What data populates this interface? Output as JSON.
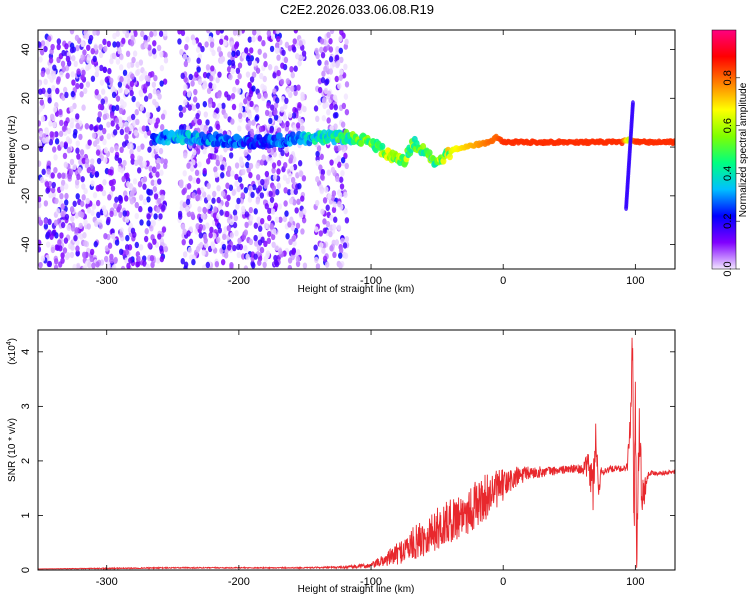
{
  "title": "C2E2.2026.033.06.08.R19",
  "chart_data": [
    {
      "type": "heatmap",
      "xlabel": "Height of straight line (km)",
      "ylabel": "Frequency (Hz)",
      "xlim": [
        -352,
        130
      ],
      "ylim": [
        -50,
        48
      ],
      "x_ticks": [
        -300,
        -200,
        -100,
        0,
        100
      ],
      "x_tick_labels": [
        "-300",
        "-200",
        "-100",
        "0",
        "100"
      ],
      "y_ticks": [
        -40,
        -20,
        0,
        20,
        40
      ],
      "y_tick_labels": [
        "-40",
        "-20",
        "0",
        "20",
        "40"
      ],
      "colorbar": {
        "label": "Normalized spectral amplitude",
        "range": [
          0,
          1
        ],
        "ticks": [
          0.0,
          0.2,
          0.4,
          0.6,
          0.8
        ],
        "tick_labels": [
          "0.0",
          "0.2",
          "0.4",
          "0.6",
          "0.8"
        ],
        "colors": [
          "#f2e6ff",
          "#8000ff",
          "#0000ff",
          "#00c0ff",
          "#00ff80",
          "#80ff00",
          "#ffff00",
          "#ff8000",
          "#ff0000",
          "#ff0080"
        ]
      },
      "noise_regions": [
        [
          -352,
          -255
        ],
        [
          -245,
          -150
        ],
        [
          -142,
          -118
        ]
      ],
      "signal_ridge": {
        "x": [
          -265,
          -240,
          -215,
          -190,
          -160,
          -140,
          -125,
          -110,
          -95,
          -85,
          -75,
          -68,
          -60,
          -52,
          -45,
          -38,
          -30,
          -20,
          -10,
          -5,
          0,
          20,
          60,
          90,
          95,
          100,
          130
        ],
        "frequency": [
          4,
          4,
          3,
          2,
          3,
          4,
          4,
          4,
          0,
          -4,
          -6,
          2,
          -2,
          -6,
          -4,
          -1,
          0,
          1,
          2,
          4,
          2,
          2,
          2,
          2,
          3,
          2,
          2
        ],
        "amplitude": [
          0.3,
          0.35,
          0.3,
          0.25,
          0.3,
          0.4,
          0.45,
          0.5,
          0.55,
          0.6,
          0.6,
          0.55,
          0.5,
          0.5,
          0.6,
          0.65,
          0.7,
          0.75,
          0.8,
          0.8,
          0.85,
          0.85,
          0.85,
          0.85,
          0.6,
          0.85,
          0.85
        ]
      }
    },
    {
      "type": "line",
      "xlabel": "Height of straight line (km)",
      "ylabel": "SNR (10 * v/v)",
      "y_scale_label": "(x10",
      "y_scale_exponent": "4",
      "y_scale_close": ")",
      "xlim": [
        -352,
        130
      ],
      "ylim": [
        0,
        4.4
      ],
      "x_ticks": [
        -300,
        -200,
        -100,
        0,
        100
      ],
      "x_tick_labels": [
        "-300",
        "-200",
        "-100",
        "0",
        "100"
      ],
      "y_ticks": [
        0,
        1,
        2,
        3,
        4
      ],
      "y_tick_labels": [
        "0",
        "1",
        "2",
        "3",
        "4"
      ],
      "series": [
        {
          "color": "#e8282d",
          "x": [
            -352,
            -300,
            -250,
            -200,
            -150,
            -120,
            -100,
            -90,
            -80,
            -70,
            -60,
            -50,
            -40,
            -30,
            -20,
            -10,
            0,
            10,
            20,
            30,
            40,
            50,
            60,
            65,
            68,
            70,
            72,
            75,
            80,
            90,
            94,
            96,
            98,
            99,
            100,
            101,
            103,
            105,
            110,
            120,
            130
          ],
          "y": [
            0.02,
            0.03,
            0.04,
            0.04,
            0.04,
            0.05,
            0.08,
            0.18,
            0.3,
            0.45,
            0.6,
            0.75,
            0.9,
            1.05,
            1.2,
            1.4,
            1.55,
            1.7,
            1.78,
            1.8,
            1.82,
            1.85,
            1.85,
            1.9,
            1.5,
            2.3,
            1.6,
            1.8,
            1.85,
            1.85,
            1.9,
            2.6,
            4.3,
            0.6,
            3.3,
            0.3,
            2.8,
            1.3,
            1.78,
            1.78,
            1.8
          ],
          "jitter": [
            0.0,
            0.01,
            0.01,
            0.01,
            0.01,
            0.02,
            0.05,
            0.12,
            0.2,
            0.3,
            0.35,
            0.4,
            0.4,
            0.45,
            0.45,
            0.4,
            0.3,
            0.2,
            0.12,
            0.1,
            0.08,
            0.08,
            0.08,
            0.3,
            0.5,
            0.5,
            0.3,
            0.08,
            0.06,
            0.06,
            0.08,
            0.6,
            0.4,
            0.5,
            0.5,
            0.4,
            0.5,
            0.4,
            0.05,
            0.04,
            0.04
          ]
        }
      ]
    }
  ]
}
